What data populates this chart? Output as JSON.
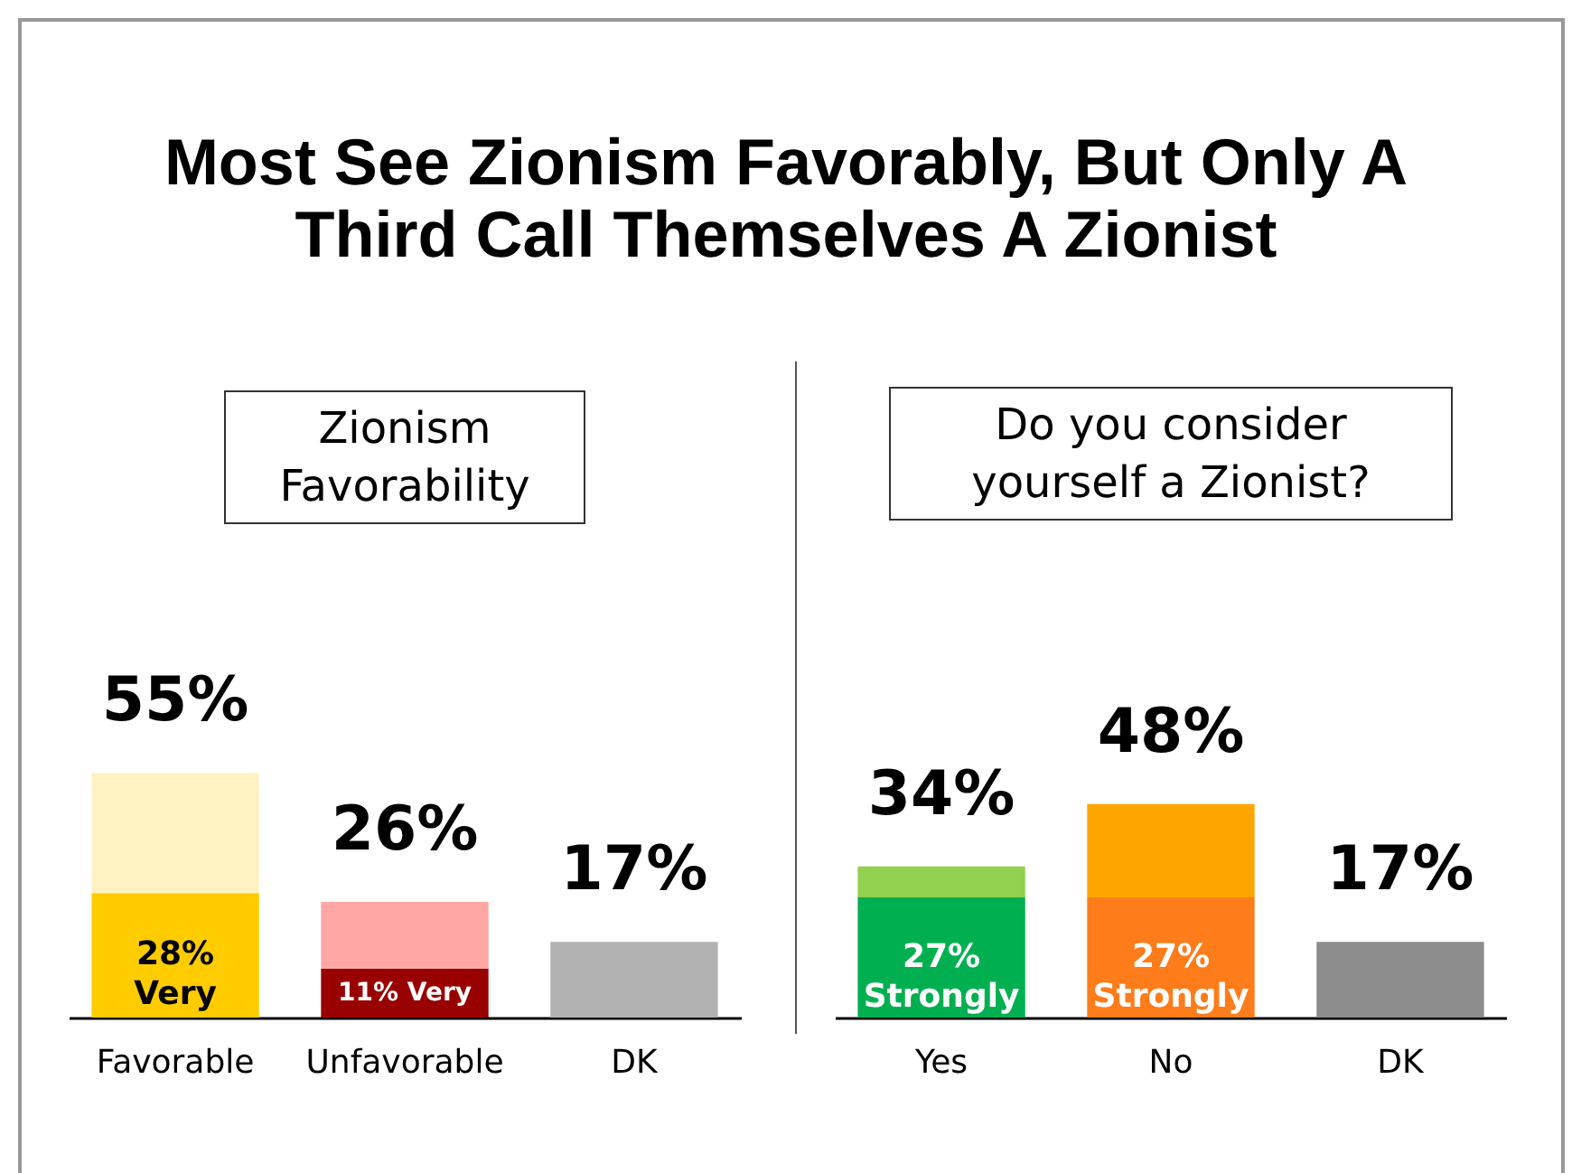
{
  "chart_data": [
    {
      "type": "bar",
      "title": "Most See Zionism Favorably, But Only A Third Call Themselves A Zionist",
      "subtitle": "Zionism Favorability",
      "categories": [
        "Favorable",
        "Unfavorable",
        "DK"
      ],
      "stacked": true,
      "series": [
        {
          "values": [
            28,
            11,
            null
          ],
          "colors": [
            "#ffcc00",
            "#990000",
            null
          ],
          "value_labels": [
            "28%\nVery",
            "11% Very",
            null
          ]
        },
        {
          "values": [
            27,
            15,
            17
          ],
          "colors": [
            "#fff2c2",
            "#ffa7a5",
            "#b2b2b2"
          ],
          "value_labels": [
            null,
            null,
            null
          ]
        }
      ],
      "totals": [
        "55%",
        "26%",
        "17%"
      ]
    },
    {
      "type": "bar",
      "subtitle": "Do you consider yourself a Zionist?",
      "categories": [
        "Yes",
        "No",
        "DK"
      ],
      "stacked": true,
      "series": [
        {
          "values": [
            27,
            27,
            null
          ],
          "colors": [
            "#00b050",
            "#ff7c1a",
            null
          ],
          "value_labels": [
            "27%\nStrongly",
            "27%\nStrongly",
            null
          ]
        },
        {
          "values": [
            7,
            21,
            17
          ],
          "colors": [
            "#92d050",
            "#ffa500",
            "#8c8c8c"
          ],
          "value_labels": [
            null,
            null,
            null
          ]
        }
      ],
      "totals": [
        "34%",
        "48%",
        "17%"
      ]
    }
  ]
}
